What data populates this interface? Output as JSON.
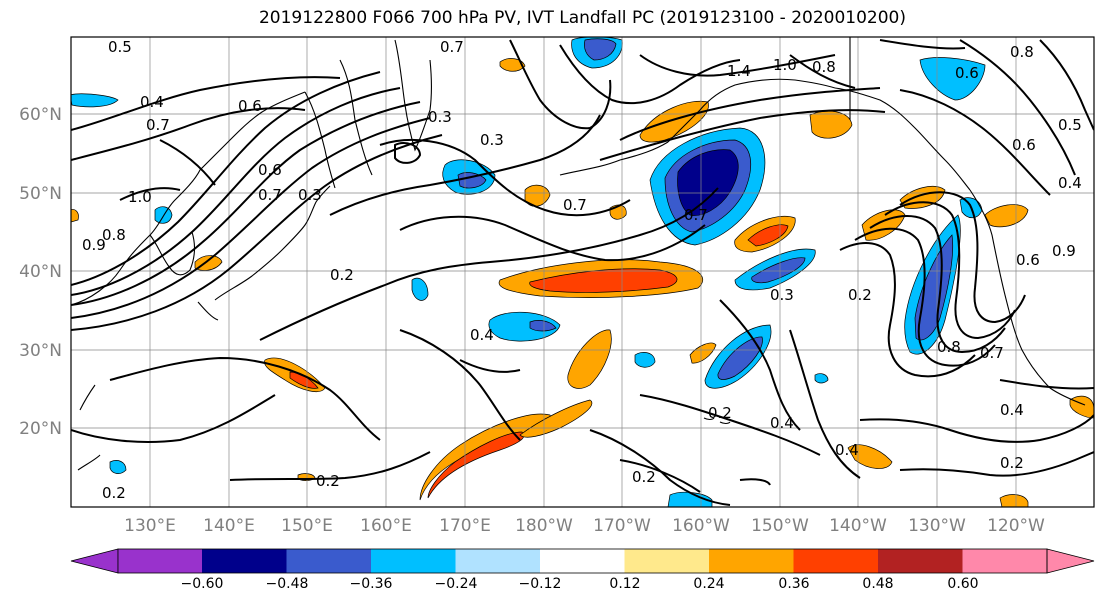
{
  "title": "2019122800 F066 700 hPa PV, IVT Landfall PC (2019123100 - 2020010200)",
  "map": {
    "lat_ticks": [
      "20°N",
      "30°N",
      "40°N",
      "50°N",
      "60°N"
    ],
    "lon_ticks": [
      "130°E",
      "140°E",
      "150°E",
      "160°E",
      "170°E",
      "180°W",
      "170°W",
      "160°W",
      "150°W",
      "140°W",
      "130°W",
      "120°W"
    ],
    "lat_range": [
      10,
      70
    ],
    "lon_range": [
      120,
      250
    ]
  },
  "colorbar": {
    "colors": [
      "#9932CC",
      "#00008B",
      "#3A5BCD",
      "#00BFFF",
      "#B0E2FF",
      "#FFFFFF",
      "#FFE98C",
      "#FFA500",
      "#FF4000",
      "#B22222",
      "#FF88AA"
    ],
    "tick_labels": [
      "−0.60",
      "−0.48",
      "−0.36",
      "−0.24",
      "−0.12",
      "0.12",
      "0.24",
      "0.36",
      "0.48",
      "0.60"
    ],
    "extend": "both"
  },
  "contour_labels": [
    "0.5",
    "0.7",
    "0.4",
    "0.6",
    "0.7",
    "0.3",
    "0.3",
    "1.4",
    "1.0",
    "0.8",
    "0.8",
    "0.6",
    "0.5",
    "0.4",
    "0.7",
    "0.6",
    "0.3",
    "0.7",
    "1.0",
    "0.8",
    "0.9",
    "0.2",
    "0.3",
    "0.4",
    "0.2",
    "0.7",
    "0.2",
    "0.4",
    "0.2",
    "0.4",
    "0.2",
    "0.2",
    "0.8",
    "0.4",
    "0.7",
    "0.6",
    "0.9",
    "0.6",
    "0.2"
  ]
}
